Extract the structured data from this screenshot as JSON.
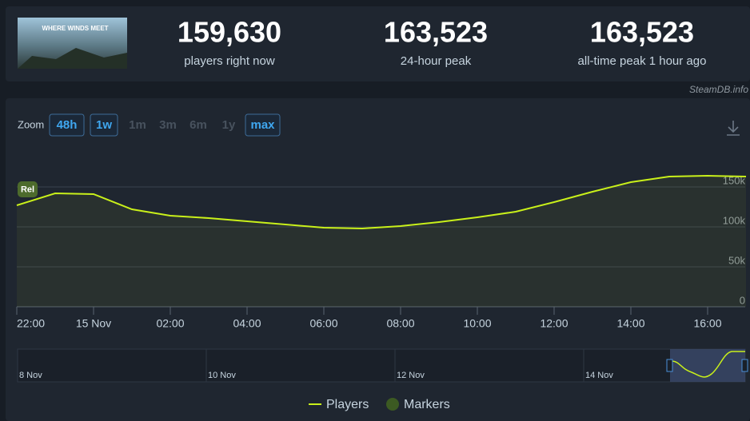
{
  "header": {
    "game_logo": "WHERE WINDS MEET",
    "stats": [
      {
        "value": "159,630",
        "label": "players right now"
      },
      {
        "value": "163,523",
        "label": "24-hour peak"
      },
      {
        "value": "163,523",
        "label": "all-time peak 1 hour ago"
      }
    ],
    "credit": "SteamDB.info"
  },
  "zoom": {
    "label": "Zoom",
    "buttons": [
      {
        "text": "48h",
        "active": true
      },
      {
        "text": "1w",
        "active": true
      },
      {
        "text": "1m",
        "active": false
      },
      {
        "text": "3m",
        "active": false
      },
      {
        "text": "6m",
        "active": false
      },
      {
        "text": "1y",
        "active": false
      },
      {
        "text": "max",
        "active": true
      }
    ]
  },
  "chart_data": {
    "type": "line",
    "categories": [
      "22:00",
      null,
      "15 Nov",
      null,
      "02:00",
      null,
      "04:00",
      null,
      "06:00",
      null,
      "08:00",
      null,
      "10:00",
      null,
      "12:00",
      null,
      "14:00",
      null,
      "16:00",
      null
    ],
    "series": [
      {
        "name": "Players",
        "color": "#c9f01a",
        "values": [
          127000,
          142000,
          141000,
          122000,
          114000,
          111000,
          107000,
          103000,
          99000,
          98000,
          101000,
          106000,
          112000,
          119000,
          131000,
          144000,
          156000,
          163000,
          164000,
          163000
        ]
      }
    ],
    "markers_label": "Markers",
    "annotations": [
      "Rel"
    ],
    "ylim": [
      0,
      200000
    ],
    "yticks": [
      {
        "value": 0,
        "label": "0"
      },
      {
        "value": 50000,
        "label": "50k"
      },
      {
        "value": 100000,
        "label": "100k"
      },
      {
        "value": 150000,
        "label": "150k"
      }
    ],
    "grid": true
  },
  "navigator": {
    "labels": [
      "8 Nov",
      "10 Nov",
      "12 Nov",
      "14 Nov"
    ]
  }
}
